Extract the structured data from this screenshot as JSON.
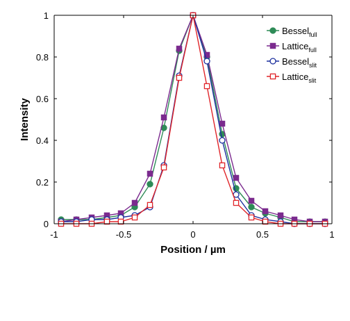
{
  "chart_data": {
    "type": "line",
    "xlabel": "Position / µm",
    "ylabel": "Intensity",
    "xlim": [
      -1,
      1
    ],
    "ylim": [
      0,
      1
    ],
    "xticks": [
      -1,
      -0.5,
      0,
      0.5,
      1
    ],
    "xtick_labels": [
      "-1",
      "-0.5",
      "0",
      "0.5",
      "1"
    ],
    "yticks": [
      0,
      0.2,
      0.4,
      0.6,
      0.8,
      1
    ],
    "ytick_labels": [
      "0",
      "0.2",
      "0.4",
      "0.6",
      "0.8",
      "1"
    ],
    "grid": false,
    "legend_position": "top-right",
    "x": [
      -0.95,
      -0.84,
      -0.73,
      -0.62,
      -0.52,
      -0.42,
      -0.31,
      -0.21,
      -0.1,
      0,
      0.1,
      0.21,
      0.31,
      0.42,
      0.52,
      0.63,
      0.73,
      0.84,
      0.95
    ],
    "series": [
      {
        "name": "Bessel",
        "name_sub": "full",
        "color": "#2e8b57",
        "marker": "filled-circle",
        "values": [
          0.02,
          0.02,
          0.02,
          0.03,
          0.04,
          0.08,
          0.19,
          0.46,
          0.83,
          1.0,
          0.8,
          0.43,
          0.17,
          0.08,
          0.05,
          0.03,
          0.01,
          0.01,
          0.01
        ]
      },
      {
        "name": "Lattice",
        "name_sub": "full",
        "color": "#7b2a8e",
        "marker": "filled-square",
        "values": [
          0.01,
          0.02,
          0.03,
          0.04,
          0.05,
          0.1,
          0.24,
          0.51,
          0.84,
          1.0,
          0.81,
          0.48,
          0.22,
          0.11,
          0.06,
          0.04,
          0.02,
          0.01,
          0.01
        ]
      },
      {
        "name": "Bessel",
        "name_sub": "slit",
        "color": "#1c2f9e",
        "marker": "open-circle",
        "values": [
          0.01,
          0.01,
          0.02,
          0.02,
          0.03,
          0.04,
          0.08,
          0.28,
          0.71,
          1.0,
          0.78,
          0.4,
          0.14,
          0.04,
          0.02,
          0.01,
          0.0,
          0.0,
          0.0
        ]
      },
      {
        "name": "Lattice",
        "name_sub": "slit",
        "color": "#e0252a",
        "marker": "open-square",
        "values": [
          0.0,
          0.0,
          0.0,
          0.01,
          0.01,
          0.03,
          0.09,
          0.27,
          0.7,
          1.0,
          0.66,
          0.28,
          0.1,
          0.03,
          0.01,
          0.0,
          0.0,
          0.0,
          0.0
        ]
      }
    ]
  }
}
